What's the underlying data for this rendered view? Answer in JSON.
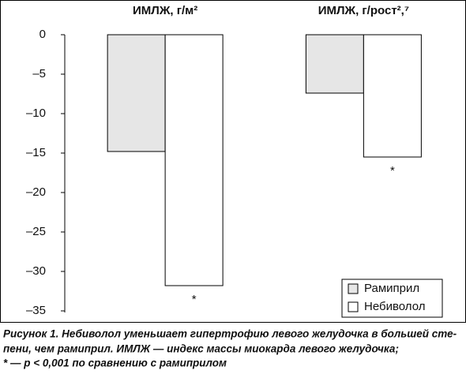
{
  "chart_data": {
    "type": "bar",
    "categories": [
      "ИМЛЖ, г/м²",
      "ИМЛЖ, г/рост²,⁷"
    ],
    "series": [
      {
        "name": "Рамиприл",
        "color": "#e6e6e6",
        "values": [
          -14.8,
          -7.4
        ]
      },
      {
        "name": "Небиволол",
        "color": "#ffffff",
        "values": [
          -31.8,
          -15.5
        ],
        "markers": [
          "*",
          "*"
        ]
      }
    ],
    "ylim": [
      -35,
      0
    ],
    "yticks": [
      0,
      {
        "value": -5,
        "label": "–5"
      },
      {
        "value": -10,
        "label": "–10"
      },
      {
        "value": -15,
        "label": "–15"
      },
      {
        "value": -20,
        "label": "–20"
      },
      {
        "value": -25,
        "label": "–25"
      },
      {
        "value": -30,
        "label": "–30"
      },
      {
        "value": -35,
        "label": "–35"
      }
    ],
    "legend": "lower right",
    "caption": [
      "Рисунок 1. Небиволол уменьшает гипертрофию левого желудочка в большей сте-",
      "пени, чем рамиприл. ИМЛЖ — индекс массы миокарда левого желудочка;",
      "* — p < 0,001 по сравнению с рамиприлом"
    ]
  }
}
